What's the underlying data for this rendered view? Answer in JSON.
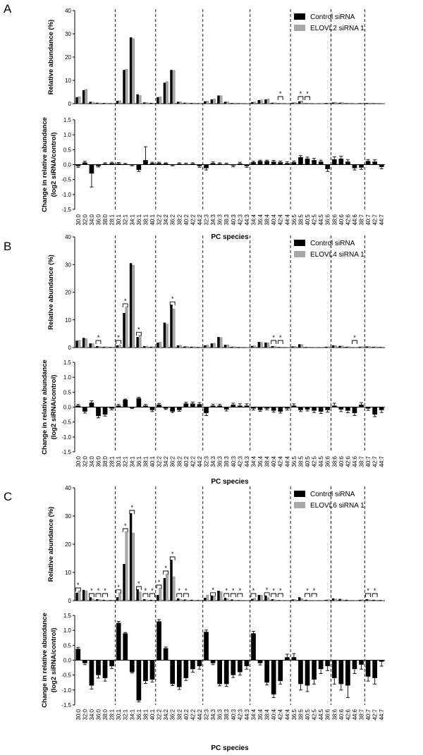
{
  "figure": {
    "legend_control_color": "#000000",
    "legend_sirna_color": "#a8a8a8"
  },
  "chart_data": [
    {
      "panel": "A",
      "type": "bar",
      "title": "",
      "xlabel": "PC species",
      "legend": [
        "Control siRNA",
        "ELOVL2 siRNA 1"
      ],
      "legend_position": "top-right",
      "categories": [
        "30:0",
        "32:0",
        "34:0",
        "36:0",
        "38:0",
        "28:1",
        "30:1",
        "32:1",
        "34:1",
        "36:1",
        "38:1",
        "40:1",
        "32:2",
        "34:2",
        "36:2",
        "38:2",
        "40:2",
        "42:2",
        "44:2",
        "32:3",
        "34:3",
        "36:3",
        "38:3",
        "40:3",
        "42:3",
        "44:3",
        "34:4",
        "36:4",
        "38:4",
        "40:4",
        "42:4",
        "44:4",
        "36:5",
        "38:5",
        "40:5",
        "42:5",
        "44:5",
        "36:6",
        "38:6",
        "40:6",
        "42:6",
        "44:6",
        "38:7",
        "40:7",
        "42:7",
        "44:7"
      ],
      "groups": [
        6,
        6,
        7,
        7,
        6,
        6,
        5,
        3
      ],
      "top": {
        "ylabel": "Relative abundance (%)",
        "ylim": [
          0,
          40
        ],
        "yticks": [
          0,
          10,
          20,
          30,
          40
        ],
        "series": [
          {
            "name": "Control siRNA",
            "values": [
              2.8,
              5.8,
              0.8,
              0.4,
              0.3,
              0.2,
              1.2,
              14.5,
              28.5,
              4.0,
              0.5,
              0.3,
              2.8,
              9.0,
              14.5,
              0.8,
              0.4,
              0.3,
              0.2,
              1.0,
              1.8,
              3.5,
              0.8,
              0.3,
              0.2,
              0.1,
              0.6,
              1.5,
              1.8,
              0.4,
              0.2,
              0.1,
              0.4,
              1.0,
              0.2,
              0.1,
              0.1,
              0.3,
              0.5,
              0.4,
              0.2,
              0.1,
              0.2,
              0.3,
              0.2,
              0.1
            ]
          },
          {
            "name": "ELOVL2 siRNA 1",
            "values": [
              3.0,
              6.2,
              0.7,
              0.3,
              0.3,
              0.2,
              1.3,
              14.8,
              28.0,
              3.5,
              0.5,
              0.3,
              2.9,
              9.5,
              14.2,
              0.8,
              0.4,
              0.3,
              0.2,
              1.1,
              2.0,
              3.4,
              0.8,
              0.3,
              0.2,
              0.1,
              0.7,
              1.6,
              2.0,
              0.4,
              0.2,
              0.1,
              0.5,
              1.2,
              0.2,
              0.1,
              0.1,
              0.3,
              0.6,
              0.5,
              0.2,
              0.1,
              0.2,
              0.3,
              0.2,
              0.1
            ]
          }
        ],
        "significant": [
          "42:4",
          "38:5",
          "40:5"
        ]
      },
      "bottom": {
        "ylabel": "Change in relative abundance (log2 siRNA/control)",
        "ylim": [
          -1.5,
          1.5
        ],
        "yticks": [
          -1.5,
          -1.0,
          -0.5,
          0.0,
          0.5,
          1.0,
          1.5
        ],
        "values": [
          -0.05,
          0.07,
          -0.3,
          -0.05,
          0.03,
          0.05,
          0.04,
          0.02,
          -0.02,
          -0.18,
          0.15,
          0.05,
          0.05,
          0.04,
          -0.02,
          0.03,
          0.02,
          0.03,
          -0.05,
          -0.12,
          0.05,
          0.03,
          0.02,
          -0.03,
          0.04,
          -0.05,
          0.08,
          0.12,
          0.12,
          0.1,
          0.08,
          0.05,
          0.08,
          0.25,
          0.2,
          0.15,
          0.1,
          -0.15,
          0.18,
          0.2,
          0.1,
          -0.12,
          -0.1,
          0.12,
          0.1,
          -0.08
        ],
        "errors": [
          0.04,
          0.04,
          0.45,
          0.03,
          0.03,
          0.03,
          0.03,
          0.02,
          0.02,
          0.05,
          0.45,
          0.03,
          0.03,
          0.02,
          0.02,
          0.03,
          0.03,
          0.03,
          0.04,
          0.06,
          0.04,
          0.03,
          0.03,
          0.04,
          0.04,
          0.04,
          0.03,
          0.03,
          0.03,
          0.04,
          0.04,
          0.04,
          0.04,
          0.05,
          0.05,
          0.06,
          0.05,
          0.08,
          0.08,
          0.08,
          0.06,
          0.06,
          0.06,
          0.05,
          0.06,
          0.06
        ]
      }
    },
    {
      "panel": "B",
      "type": "bar",
      "title": "",
      "xlabel": "PC species",
      "legend": [
        "Control siRNA",
        "ELOVL4 siRNA 1"
      ],
      "legend_position": "top-right",
      "categories": [
        "30:0",
        "32:0",
        "34:0",
        "36:0",
        "38:0",
        "28:1",
        "30:1",
        "32:1",
        "34:1",
        "36:1",
        "38:1",
        "40:1",
        "32:2",
        "34:2",
        "36:2",
        "38:2",
        "40:2",
        "42:2",
        "44:2",
        "32:3",
        "34:3",
        "36:3",
        "38:3",
        "40:3",
        "42:3",
        "44:3",
        "34:4",
        "36:4",
        "38:4",
        "40:4",
        "42:4",
        "44:4",
        "36:5",
        "38:5",
        "40:5",
        "42:5",
        "44:5",
        "36:6",
        "38:6",
        "40:6",
        "42:6",
        "44:6",
        "38:7",
        "40:7",
        "42:7",
        "44:7"
      ],
      "groups": [
        6,
        6,
        7,
        7,
        6,
        6,
        5,
        3
      ],
      "top": {
        "ylabel": "Relative abundance (%)",
        "ylim": [
          0,
          40
        ],
        "yticks": [
          0,
          10,
          20,
          30,
          40
        ],
        "series": [
          {
            "name": "Control siRNA",
            "values": [
              2.5,
              3.5,
              1.5,
              0.5,
              0.3,
              0.2,
              0.8,
              12.5,
              30.5,
              3.8,
              0.5,
              0.3,
              1.8,
              9.0,
              15.5,
              0.8,
              0.4,
              0.3,
              0.2,
              0.8,
              1.5,
              3.8,
              1.0,
              0.3,
              0.2,
              0.1,
              0.6,
              2.0,
              1.8,
              0.5,
              0.2,
              0.1,
              0.4,
              1.2,
              0.2,
              0.1,
              0.1,
              0.3,
              0.8,
              0.6,
              0.3,
              0.1,
              0.3,
              0.4,
              0.3,
              0.2
            ]
          },
          {
            "name": "ELOVL4 siRNA 1",
            "values": [
              2.6,
              3.2,
              1.4,
              0.4,
              0.3,
              0.2,
              0.9,
              14.8,
              29.8,
              4.5,
              0.5,
              0.3,
              1.9,
              8.5,
              14.0,
              0.8,
              0.4,
              0.3,
              0.2,
              0.9,
              1.6,
              3.6,
              1.0,
              0.3,
              0.2,
              0.1,
              0.6,
              1.9,
              1.7,
              0.5,
              0.2,
              0.1,
              0.4,
              1.1,
              0.2,
              0.1,
              0.1,
              0.3,
              0.7,
              0.6,
              0.3,
              0.1,
              0.3,
              0.4,
              0.3,
              0.2
            ]
          }
        ],
        "significant": [
          "36:0",
          "30:1",
          "32:1",
          "36:1",
          "36:2",
          "40:4",
          "42:4",
          "44:6"
        ]
      },
      "bottom": {
        "ylabel": "Change in relative abundance (log2 siRNA/control)",
        "ylim": [
          -1.5,
          1.5
        ],
        "yticks": [
          -1.5,
          -1.0,
          -0.5,
          0.0,
          0.5,
          1.0,
          1.5
        ],
        "values": [
          0.05,
          -0.15,
          0.15,
          -0.3,
          -0.25,
          -0.05,
          0.05,
          0.25,
          -0.03,
          0.3,
          0.05,
          -0.1,
          0.08,
          -0.05,
          -0.15,
          -0.1,
          0.12,
          0.12,
          0.1,
          -0.2,
          0.05,
          0.05,
          -0.08,
          0.08,
          0.05,
          0.05,
          -0.05,
          -0.1,
          -0.05,
          -0.12,
          -0.15,
          -0.05,
          0.05,
          -0.1,
          -0.08,
          -0.12,
          -0.15,
          -0.1,
          0.05,
          -0.08,
          -0.12,
          -0.2,
          0.08,
          -0.05,
          -0.25,
          -0.1
        ],
        "errors": [
          0.04,
          0.05,
          0.06,
          0.06,
          0.05,
          0.04,
          0.04,
          0.02,
          0.02,
          0.03,
          0.04,
          0.05,
          0.04,
          0.03,
          0.03,
          0.04,
          0.04,
          0.05,
          0.05,
          0.08,
          0.05,
          0.04,
          0.05,
          0.05,
          0.06,
          0.06,
          0.05,
          0.04,
          0.04,
          0.05,
          0.05,
          0.05,
          0.06,
          0.05,
          0.05,
          0.06,
          0.06,
          0.07,
          0.08,
          0.07,
          0.07,
          0.08,
          0.07,
          0.06,
          0.07,
          0.08
        ]
      }
    },
    {
      "panel": "C",
      "type": "bar",
      "title": "",
      "xlabel": "PC species",
      "legend": [
        "Control siRNA",
        "ELOVL6 siRNA 1"
      ],
      "legend_position": "top-right",
      "categories": [
        "30:0",
        "32:0",
        "34:0",
        "36:0",
        "38:0",
        "28:1",
        "30:1",
        "32:1",
        "34:1",
        "36:1",
        "38:1",
        "40:1",
        "32:2",
        "34:2",
        "36:2",
        "38:2",
        "40:2",
        "42:2",
        "44:2",
        "32:3",
        "34:3",
        "36:3",
        "38:3",
        "40:3",
        "42:3",
        "44:3",
        "34:4",
        "36:4",
        "38:4",
        "40:4",
        "42:4",
        "44:4",
        "36:5",
        "38:5",
        "40:5",
        "42:5",
        "44:5",
        "36:6",
        "38:6",
        "40:6",
        "42:6",
        "44:6",
        "38:7",
        "40:7",
        "42:7",
        "44:7"
      ],
      "groups": [
        6,
        6,
        7,
        7,
        6,
        6,
        5,
        3
      ],
      "top": {
        "ylabel": "Relative abundance (%)",
        "ylim": [
          0,
          40
        ],
        "yticks": [
          0,
          10,
          20,
          30,
          40
        ],
        "series": [
          {
            "name": "Control siRNA",
            "values": [
              2.8,
              3.8,
              1.2,
              0.5,
              0.3,
              0.2,
              1.2,
              13.0,
              31.0,
              4.0,
              0.5,
              0.3,
              2.0,
              8.0,
              14.5,
              0.8,
              0.4,
              0.3,
              0.2,
              1.0,
              1.8,
              3.5,
              1.0,
              0.4,
              0.2,
              0.1,
              0.6,
              2.0,
              1.8,
              0.5,
              0.2,
              0.1,
              0.4,
              1.2,
              0.3,
              0.1,
              0.1,
              0.3,
              0.8,
              0.6,
              0.3,
              0.1,
              0.3,
              0.5,
              0.3,
              0.2
            ]
          },
          {
            "name": "ELOVL6 siRNA 1",
            "values": [
              3.5,
              3.5,
              0.7,
              0.4,
              0.2,
              0.2,
              2.8,
              24.5,
              24.0,
              3.1,
              0.3,
              0.2,
              4.5,
              9.5,
              8.5,
              0.5,
              0.3,
              0.2,
              0.2,
              2.0,
              1.7,
              3.2,
              0.6,
              0.2,
              0.2,
              0.1,
              0.9,
              1.9,
              1.1,
              0.3,
              0.1,
              0.1,
              0.4,
              0.7,
              0.2,
              0.1,
              0.1,
              0.3,
              0.6,
              0.3,
              0.2,
              0.1,
              0.3,
              0.3,
              0.2,
              0.1
            ]
          }
        ],
        "significant": [
          "30:0",
          "34:0",
          "36:0",
          "38:0",
          "30:1",
          "32:1",
          "34:1",
          "36:1",
          "38:1",
          "40:1",
          "32:2",
          "34:2",
          "36:2",
          "38:2",
          "40:2",
          "34:3",
          "38:3",
          "40:3",
          "42:3",
          "34:4",
          "38:4",
          "40:4",
          "42:4",
          "40:5",
          "42:5",
          "40:7",
          "42:7"
        ]
      },
      "bottom": {
        "ylabel": "Change in relative abundance (log2 siRNA/control)",
        "ylim": [
          -1.5,
          1.5
        ],
        "yticks": [
          -1.5,
          -1.0,
          -0.5,
          0.0,
          0.5,
          1.0,
          1.5
        ],
        "values": [
          0.38,
          -0.1,
          -0.85,
          -0.5,
          -0.6,
          -0.2,
          1.25,
          0.9,
          -0.4,
          -1.35,
          -0.7,
          -0.65,
          1.3,
          0.4,
          -0.8,
          -0.9,
          -0.6,
          -0.3,
          -0.2,
          0.95,
          -0.1,
          -0.8,
          -0.8,
          -0.5,
          -0.4,
          -0.2,
          0.9,
          -0.1,
          -0.75,
          -1.15,
          -0.7,
          0.1,
          0.1,
          -0.8,
          -0.85,
          -0.65,
          -0.3,
          -0.2,
          -0.6,
          -0.8,
          -0.85,
          -0.3,
          -0.15,
          -0.55,
          -0.6,
          -0.05
        ],
        "errors": [
          0.05,
          0.05,
          0.12,
          0.1,
          0.1,
          0.08,
          0.05,
          0.03,
          0.03,
          0.05,
          0.08,
          0.08,
          0.06,
          0.04,
          0.05,
          0.08,
          0.08,
          0.1,
          0.1,
          0.06,
          0.05,
          0.06,
          0.08,
          0.08,
          0.1,
          0.1,
          0.07,
          0.06,
          0.08,
          0.1,
          0.1,
          0.1,
          0.12,
          0.2,
          0.2,
          0.15,
          0.15,
          0.15,
          0.2,
          0.2,
          0.4,
          0.15,
          0.15,
          0.15,
          0.2,
          0.15
        ]
      }
    }
  ]
}
